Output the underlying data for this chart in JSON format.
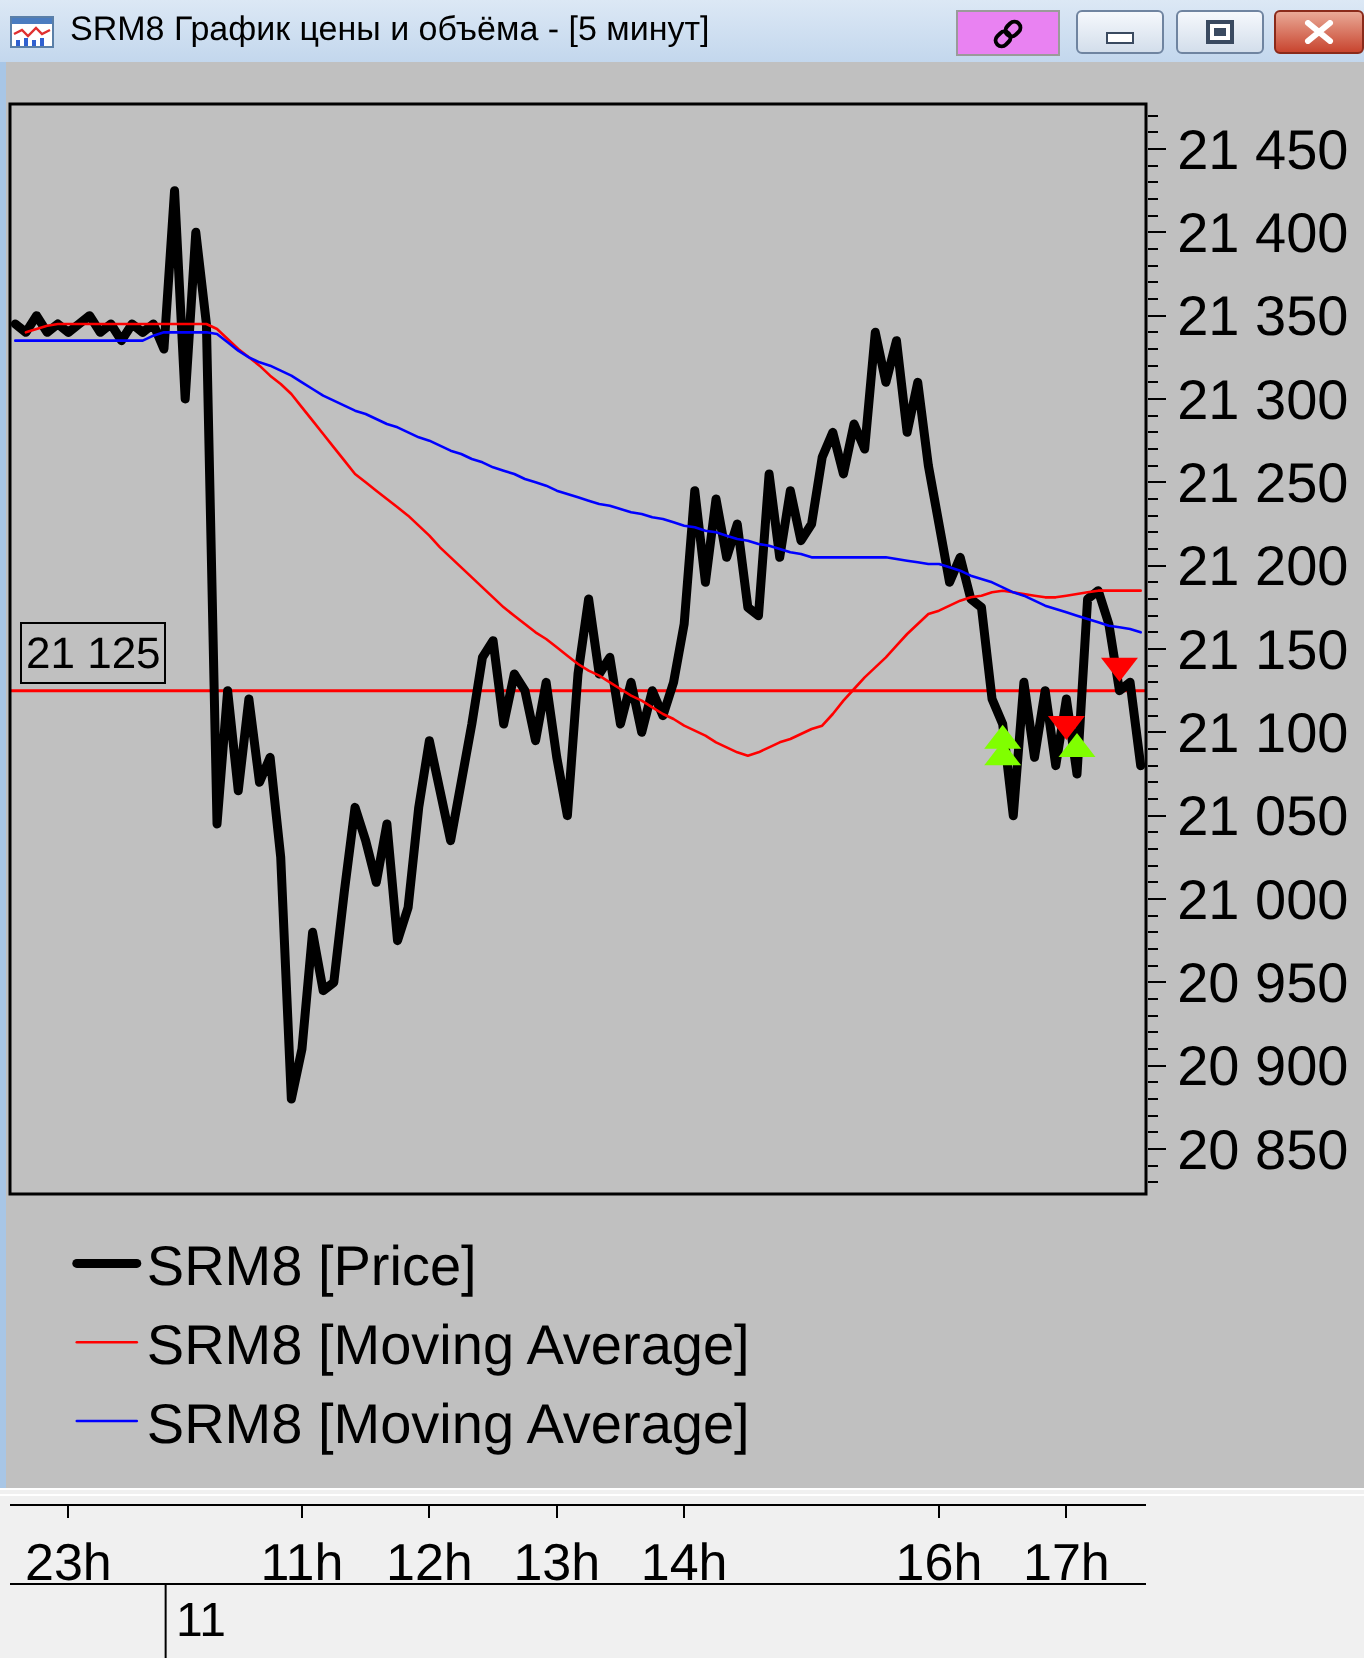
{
  "chart_data": {
    "type": "line",
    "title": "SRM8 График цены и объёма - [5 минут]",
    "categories": [
      null,
      null,
      null,
      null,
      null,
      "23h",
      null,
      null,
      null,
      null,
      null,
      null,
      null,
      null,
      null,
      null,
      null,
      null,
      null,
      null,
      null,
      null,
      null,
      null,
      null,
      null,
      null,
      "11h",
      null,
      null,
      null,
      null,
      null,
      null,
      null,
      null,
      null,
      null,
      null,
      "12h",
      null,
      null,
      null,
      null,
      null,
      null,
      null,
      null,
      null,
      null,
      null,
      "13h",
      null,
      null,
      null,
      null,
      null,
      null,
      null,
      null,
      null,
      null,
      null,
      "14h",
      null,
      null,
      null,
      null,
      null,
      null,
      null,
      null,
      null,
      null,
      null,
      null,
      null,
      null,
      null,
      null,
      null,
      null,
      null,
      null,
      null,
      null,
      null,
      "16h",
      null,
      null,
      null,
      null,
      null,
      null,
      null,
      null,
      null,
      null,
      null,
      "17h",
      null,
      null,
      null,
      null,
      null,
      null,
      null
    ],
    "annotations": [
      "11"
    ],
    "ylim": [
      20823,
      21477
    ],
    "yticks": [
      {
        "value": 20830,
        "label": null
      },
      {
        "value": 20840,
        "label": null
      },
      {
        "value": 20850,
        "label": "20 850"
      },
      {
        "value": 20860,
        "label": null
      },
      {
        "value": 20870,
        "label": null
      },
      {
        "value": 20880,
        "label": null
      },
      {
        "value": 20890,
        "label": null
      },
      {
        "value": 20900,
        "label": "20 900"
      },
      {
        "value": 20910,
        "label": null
      },
      {
        "value": 20920,
        "label": null
      },
      {
        "value": 20930,
        "label": null
      },
      {
        "value": 20940,
        "label": null
      },
      {
        "value": 20950,
        "label": "20 950"
      },
      {
        "value": 20960,
        "label": null
      },
      {
        "value": 20970,
        "label": null
      },
      {
        "value": 20980,
        "label": null
      },
      {
        "value": 20990,
        "label": null
      },
      {
        "value": 21000,
        "label": "21 000"
      },
      {
        "value": 21010,
        "label": null
      },
      {
        "value": 21020,
        "label": null
      },
      {
        "value": 21030,
        "label": null
      },
      {
        "value": 21040,
        "label": null
      },
      {
        "value": 21050,
        "label": "21 050"
      },
      {
        "value": 21060,
        "label": null
      },
      {
        "value": 21070,
        "label": null
      },
      {
        "value": 21080,
        "label": null
      },
      {
        "value": 21090,
        "label": null
      },
      {
        "value": 21100,
        "label": "21 100"
      },
      {
        "value": 21110,
        "label": null
      },
      {
        "value": 21120,
        "label": null
      },
      {
        "value": 21130,
        "label": null
      },
      {
        "value": 21140,
        "label": null
      },
      {
        "value": 21150,
        "label": "21 150"
      },
      {
        "value": 21160,
        "label": null
      },
      {
        "value": 21170,
        "label": null
      },
      {
        "value": 21180,
        "label": null
      },
      {
        "value": 21190,
        "label": null
      },
      {
        "value": 21200,
        "label": "21 200"
      },
      {
        "value": 21210,
        "label": null
      },
      {
        "value": 21220,
        "label": null
      },
      {
        "value": 21230,
        "label": null
      },
      {
        "value": 21240,
        "label": null
      },
      {
        "value": 21250,
        "label": "21 250"
      },
      {
        "value": 21260,
        "label": null
      },
      {
        "value": 21270,
        "label": null
      },
      {
        "value": 21280,
        "label": null
      },
      {
        "value": 21290,
        "label": null
      },
      {
        "value": 21300,
        "label": "21 300"
      },
      {
        "value": 21310,
        "label": null
      },
      {
        "value": 21320,
        "label": null
      },
      {
        "value": 21330,
        "label": null
      },
      {
        "value": 21340,
        "label": null
      },
      {
        "value": 21350,
        "label": "21 350"
      },
      {
        "value": 21360,
        "label": null
      },
      {
        "value": 21370,
        "label": null
      },
      {
        "value": 21380,
        "label": null
      },
      {
        "value": 21390,
        "label": null
      },
      {
        "value": 21400,
        "label": "21 400"
      },
      {
        "value": 21410,
        "label": null
      },
      {
        "value": 21420,
        "label": null
      },
      {
        "value": 21430,
        "label": null
      },
      {
        "value": 21440,
        "label": null
      },
      {
        "value": 21450,
        "label": "21 450"
      },
      {
        "value": 21460,
        "label": null
      },
      {
        "value": 21470,
        "label": null
      }
    ],
    "ref_lines": [
      {
        "axis": "y",
        "value": 21125,
        "label": "21 125",
        "color": "#ff0000"
      }
    ],
    "legend": "bottom left",
    "series": [
      {
        "name": "SRM8 [Price]",
        "color": "#000000",
        "values": [
          21345,
          21340,
          21350,
          21340,
          21345,
          21340,
          21345,
          21350,
          21340,
          21345,
          21335,
          21345,
          21340,
          21345,
          21330,
          21425,
          21300,
          21400,
          21345,
          21045,
          21125,
          21065,
          21120,
          21070,
          21085,
          21025,
          20880,
          20910,
          20980,
          20945,
          20950,
          21005,
          21055,
          21035,
          21010,
          21045,
          20975,
          20995,
          21055,
          21095,
          21065,
          21035,
          21070,
          21105,
          21145,
          21155,
          21105,
          21135,
          21125,
          21095,
          21130,
          21085,
          21050,
          21135,
          21180,
          21135,
          21145,
          21105,
          21130,
          21100,
          21125,
          21110,
          21130,
          21165,
          21245,
          21190,
          21240,
          21205,
          21225,
          21175,
          21170,
          21255,
          21205,
          21245,
          21215,
          21225,
          21265,
          21280,
          21255,
          21285,
          21270,
          21340,
          21310,
          21335,
          21280,
          21310,
          21260,
          21225,
          21190,
          21205,
          21180,
          21175,
          21120,
          21105,
          21050,
          21130,
          21085,
          21125,
          21080,
          21120,
          21075,
          21180,
          21185,
          21165,
          21125,
          21130,
          21080
        ]
      },
      {
        "name": "SRM8 [Moving Average]",
        "color": "#ff0000",
        "values": [
          null,
          21340,
          21342,
          21344,
          21345,
          21345,
          21345,
          21345,
          21345,
          21345,
          21345,
          21345,
          21345,
          21345,
          21345,
          21345,
          21345,
          21345,
          21345,
          21342,
          21336,
          21330,
          21325,
          21320,
          21314,
          21309,
          21303,
          21295,
          21287,
          21279,
          21271,
          21263,
          21255,
          21250,
          21245,
          21240,
          21235,
          21230,
          21224,
          21218,
          21211,
          21205,
          21199,
          21193,
          21187,
          21181,
          21175,
          21170,
          21165,
          21160,
          21156,
          21151,
          21146,
          21141,
          21137,
          21134,
          21130,
          21126,
          21122,
          21119,
          21115,
          21111,
          21108,
          21104,
          21101,
          21098,
          21094,
          21091,
          21088,
          21086,
          21088,
          21091,
          21094,
          21096,
          21099,
          21102,
          21104,
          21111,
          21119,
          21126,
          21133,
          21139,
          21145,
          21152,
          21159,
          21165,
          21171,
          21173,
          21176,
          21179,
          21181,
          21182,
          21184,
          21185,
          21184,
          21183,
          21182,
          21181,
          21181,
          21182,
          21183,
          21184,
          21185,
          21185,
          21185,
          21185,
          21185
        ]
      },
      {
        "name": "SRM8 [Moving Average]",
        "color": "#0000ff",
        "values": [
          21335,
          21335,
          21335,
          21335,
          21335,
          21335,
          21335,
          21335,
          21335,
          21335,
          21335,
          21335,
          21335,
          21338,
          21340,
          21340,
          21340,
          21340,
          21340,
          21339,
          21334,
          21329,
          21325,
          21322,
          21320,
          21317,
          21314,
          21310,
          21306,
          21302,
          21299,
          21296,
          21293,
          21291,
          21288,
          21285,
          21283,
          21280,
          21277,
          21275,
          21272,
          21269,
          21267,
          21264,
          21262,
          21259,
          21257,
          21255,
          21252,
          21250,
          21248,
          21245,
          21243,
          21241,
          21239,
          21237,
          21236,
          21234,
          21232,
          21231,
          21229,
          21228,
          21226,
          21224,
          21223,
          21221,
          21220,
          21218,
          21216,
          21215,
          21213,
          21212,
          21210,
          21208,
          21207,
          21205,
          21205,
          21205,
          21205,
          21205,
          21205,
          21205,
          21205,
          21204,
          21203,
          21202,
          21201,
          21201,
          21199,
          21197,
          21194,
          21192,
          21190,
          21187,
          21184,
          21182,
          21179,
          21176,
          21174,
          21172,
          21170,
          21168,
          21166,
          21164,
          21163,
          21162,
          21160
        ]
      },
      {
        "type": "scatter",
        "marker": "triangle",
        "color": "#80ff00",
        "values": [
          null,
          null,
          null,
          null,
          null,
          null,
          null,
          null,
          null,
          null,
          null,
          null,
          null,
          null,
          null,
          null,
          null,
          null,
          null,
          null,
          null,
          null,
          null,
          null,
          null,
          null,
          null,
          null,
          null,
          null,
          null,
          null,
          null,
          null,
          null,
          null,
          null,
          null,
          null,
          null,
          null,
          null,
          null,
          null,
          null,
          null,
          null,
          null,
          null,
          null,
          null,
          null,
          null,
          null,
          null,
          null,
          null,
          null,
          null,
          null,
          null,
          null,
          null,
          null,
          null,
          null,
          null,
          null,
          null,
          null,
          null,
          null,
          null,
          null,
          null,
          null,
          null,
          null,
          null,
          null,
          null,
          null,
          null,
          null,
          null,
          null,
          null,
          null,
          null,
          null,
          null,
          null,
          null,
          21095,
          null,
          null,
          null,
          null,
          null,
          null,
          21090,
          null,
          null,
          null,
          null,
          null,
          null
        ]
      },
      {
        "type": "scatter",
        "marker": "triangle",
        "color": "#80ff00",
        "values": [
          null,
          null,
          null,
          null,
          null,
          null,
          null,
          null,
          null,
          null,
          null,
          null,
          null,
          null,
          null,
          null,
          null,
          null,
          null,
          null,
          null,
          null,
          null,
          null,
          null,
          null,
          null,
          null,
          null,
          null,
          null,
          null,
          null,
          null,
          null,
          null,
          null,
          null,
          null,
          null,
          null,
          null,
          null,
          null,
          null,
          null,
          null,
          null,
          null,
          null,
          null,
          null,
          null,
          null,
          null,
          null,
          null,
          null,
          null,
          null,
          null,
          null,
          null,
          null,
          null,
          null,
          null,
          null,
          null,
          null,
          null,
          null,
          null,
          null,
          null,
          null,
          null,
          null,
          null,
          null,
          null,
          null,
          null,
          null,
          null,
          null,
          null,
          null,
          null,
          null,
          null,
          null,
          null,
          21085,
          null,
          null,
          null,
          null,
          null,
          null,
          null,
          null,
          null,
          null,
          null,
          null,
          null
        ]
      },
      {
        "type": "scatter",
        "marker": "triangle-down",
        "color": "#ff0000",
        "values": [
          null,
          null,
          null,
          null,
          null,
          null,
          null,
          null,
          null,
          null,
          null,
          null,
          null,
          null,
          null,
          null,
          null,
          null,
          null,
          null,
          null,
          null,
          null,
          null,
          null,
          null,
          null,
          null,
          null,
          null,
          null,
          null,
          null,
          null,
          null,
          null,
          null,
          null,
          null,
          null,
          null,
          null,
          null,
          null,
          null,
          null,
          null,
          null,
          null,
          null,
          null,
          null,
          null,
          null,
          null,
          null,
          null,
          null,
          null,
          null,
          null,
          null,
          null,
          null,
          null,
          null,
          null,
          null,
          null,
          null,
          null,
          null,
          null,
          null,
          null,
          null,
          null,
          null,
          null,
          null,
          null,
          null,
          null,
          null,
          null,
          null,
          null,
          null,
          null,
          null,
          null,
          null,
          null,
          null,
          null,
          null,
          null,
          null,
          null,
          21105,
          null,
          null,
          null,
          null,
          21140,
          null,
          null
        ]
      }
    ]
  }
}
